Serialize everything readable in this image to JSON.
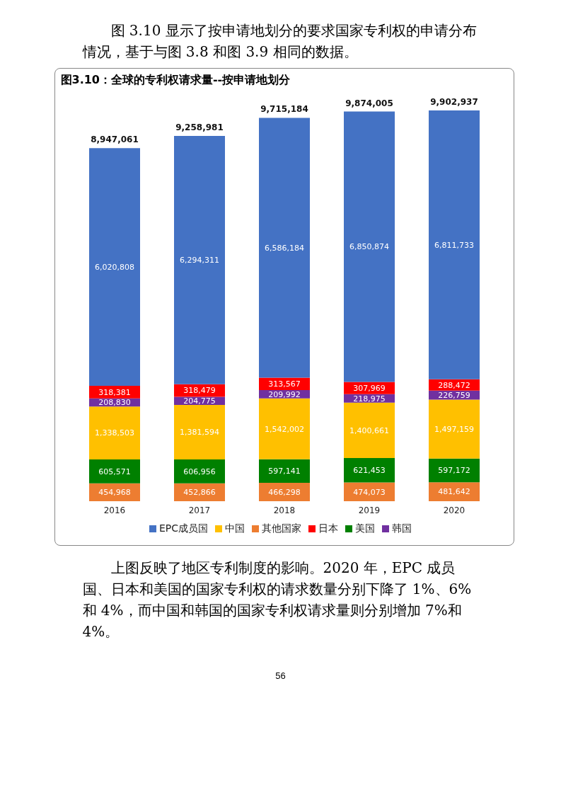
{
  "chart_data": {
    "type": "bar",
    "title": "图3.10：全球的专利权请求量--按申请地划分",
    "annotations": [
      "图 3.10 显示了按申请地划分的要求国家专利权的申请分布情况，基于与图 3.8 和图 3.9 相同的数据。",
      "上图反映了地区专利制度的影响。2020 年，EPC 成员国、日本和美国的国家专利权的请求数量分别下降了 1%、6%和 4%，而中国和韩国的国家专利权请求量则分别增加 7%和 4%。",
      "56"
    ],
    "categories": [
      "2016",
      "2017",
      "2018",
      "2019",
      "2020"
    ],
    "stacked": true,
    "legend": "bottom",
    "grid": false,
    "series": [
      {
        "name": "其他国家",
        "color": "#ed7d31",
        "values": [
          454968,
          452866,
          466298,
          474073,
          481642
        ],
        "value_labels": [
          "454,968",
          "452,866",
          "466,298",
          "474,073",
          "481,642"
        ]
      },
      {
        "name": "美国",
        "color": "#008000",
        "values": [
          605571,
          606956,
          597141,
          621453,
          597172
        ],
        "value_labels": [
          "605,571",
          "606,956",
          "597,141",
          "621,453",
          "597,172"
        ]
      },
      {
        "name": "中国",
        "color": "#ffc000",
        "values": [
          1338503,
          1381594,
          1542002,
          1400661,
          1497159
        ],
        "value_labels": [
          "1,338,503",
          "1,381,594",
          "1,542,002",
          "1,400,661",
          "1,497,159"
        ]
      },
      {
        "name": "韩国",
        "color": "#7030a0",
        "values": [
          208830,
          204775,
          209992,
          218975,
          226759
        ],
        "value_labels": [
          "208,830",
          "204,775",
          "209,992",
          "218,975",
          "226,759"
        ]
      },
      {
        "name": "日本",
        "color": "#ff0000",
        "values": [
          318381,
          318479,
          313567,
          307969,
          288472
        ],
        "value_labels": [
          "318,381",
          "318,479",
          "313,567",
          "307,969",
          "288,472"
        ]
      },
      {
        "name": "EPC成员国",
        "color": "#4472c4",
        "values": [
          6020808,
          6294311,
          6586184,
          6850874,
          6811733
        ],
        "value_labels": [
          "6,020,808",
          "6,294,311",
          "6,586,184",
          "6,850,874",
          "6,811,733"
        ]
      }
    ],
    "totals": [
      "8,947,061",
      "9,258,981",
      "9,715,184",
      "9,874,005",
      "9,902,937"
    ]
  }
}
